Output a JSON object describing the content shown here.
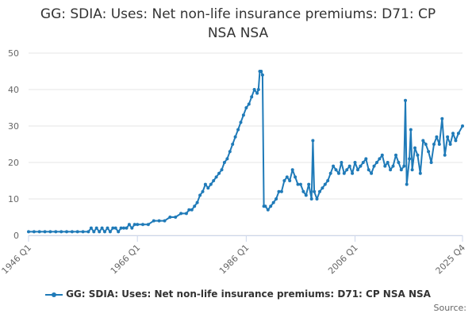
{
  "chart_data": {
    "type": "line",
    "title": "GG: SDIA: Uses: Net non-life insurance premiums: D71: CP NSA NSA",
    "xlabel": "",
    "ylabel": "",
    "ylim": [
      0,
      50
    ],
    "yticks": [
      0,
      10,
      20,
      30,
      40,
      50
    ],
    "xlim": [
      1946.0,
      2025.75
    ],
    "xticks": [
      {
        "label": "1946 Q1",
        "value": 1946.0
      },
      {
        "label": "1966 Q1",
        "value": 1966.0
      },
      {
        "label": "1986 Q1",
        "value": 1986.0
      },
      {
        "label": "2006 Q1",
        "value": 2006.0
      },
      {
        "label": "2025 Q4",
        "value": 2025.75
      }
    ],
    "grid": true,
    "legend_position": "bottom",
    "color": "#1f7ab8",
    "series": [
      {
        "name": "GG: SDIA: Uses: Net non-life insurance premiums: D71: CP NSA NSA",
        "points": [
          [
            1946.0,
            1
          ],
          [
            1947.0,
            1
          ],
          [
            1948.0,
            1
          ],
          [
            1949.0,
            1
          ],
          [
            1950.0,
            1
          ],
          [
            1951.0,
            1
          ],
          [
            1952.0,
            1
          ],
          [
            1953.0,
            1
          ],
          [
            1954.0,
            1
          ],
          [
            1955.0,
            1
          ],
          [
            1956.0,
            1
          ],
          [
            1957.0,
            1
          ],
          [
            1957.5,
            2
          ],
          [
            1958.0,
            1
          ],
          [
            1958.5,
            2
          ],
          [
            1959.0,
            1
          ],
          [
            1959.5,
            2
          ],
          [
            1960.0,
            1
          ],
          [
            1960.5,
            2
          ],
          [
            1961.0,
            1
          ],
          [
            1961.5,
            2
          ],
          [
            1962.0,
            2
          ],
          [
            1962.5,
            1
          ],
          [
            1963.0,
            2
          ],
          [
            1963.5,
            2
          ],
          [
            1964.0,
            2
          ],
          [
            1964.5,
            3
          ],
          [
            1965.0,
            2
          ],
          [
            1965.5,
            3
          ],
          [
            1966.0,
            3
          ],
          [
            1967.0,
            3
          ],
          [
            1968.0,
            3
          ],
          [
            1969.0,
            4
          ],
          [
            1970.0,
            4
          ],
          [
            1971.0,
            4
          ],
          [
            1972.0,
            5
          ],
          [
            1973.0,
            5
          ],
          [
            1974.0,
            6
          ],
          [
            1975.0,
            6
          ],
          [
            1975.5,
            7
          ],
          [
            1976.0,
            7
          ],
          [
            1976.5,
            8
          ],
          [
            1977.0,
            9
          ],
          [
            1977.5,
            11
          ],
          [
            1978.0,
            12
          ],
          [
            1978.5,
            14
          ],
          [
            1979.0,
            13
          ],
          [
            1979.5,
            14
          ],
          [
            1980.0,
            15
          ],
          [
            1980.5,
            16
          ],
          [
            1981.0,
            17
          ],
          [
            1981.5,
            18
          ],
          [
            1982.0,
            20
          ],
          [
            1982.5,
            21
          ],
          [
            1983.0,
            23
          ],
          [
            1983.5,
            25
          ],
          [
            1984.0,
            27
          ],
          [
            1984.5,
            29
          ],
          [
            1985.0,
            31
          ],
          [
            1985.5,
            33
          ],
          [
            1986.0,
            35
          ],
          [
            1986.5,
            36
          ],
          [
            1987.0,
            38
          ],
          [
            1987.5,
            40
          ],
          [
            1988.0,
            39
          ],
          [
            1988.25,
            40
          ],
          [
            1988.5,
            45
          ],
          [
            1988.75,
            45
          ],
          [
            1989.0,
            44
          ],
          [
            1989.25,
            8
          ],
          [
            1989.5,
            8
          ],
          [
            1990.0,
            7
          ],
          [
            1990.5,
            8
          ],
          [
            1991.0,
            9
          ],
          [
            1991.5,
            10
          ],
          [
            1992.0,
            12
          ],
          [
            1992.5,
            12
          ],
          [
            1993.0,
            15
          ],
          [
            1993.5,
            16
          ],
          [
            1994.0,
            15
          ],
          [
            1994.5,
            18
          ],
          [
            1995.0,
            16
          ],
          [
            1995.5,
            14
          ],
          [
            1996.0,
            14
          ],
          [
            1996.5,
            12
          ],
          [
            1997.0,
            11
          ],
          [
            1997.5,
            14
          ],
          [
            1998.0,
            10
          ],
          [
            1998.25,
            26
          ],
          [
            1998.5,
            12
          ],
          [
            1999.0,
            10
          ],
          [
            1999.5,
            12
          ],
          [
            2000.0,
            13
          ],
          [
            2000.5,
            14
          ],
          [
            2001.0,
            15
          ],
          [
            2001.5,
            17
          ],
          [
            2002.0,
            19
          ],
          [
            2002.5,
            18
          ],
          [
            2003.0,
            17
          ],
          [
            2003.5,
            20
          ],
          [
            2004.0,
            17
          ],
          [
            2004.5,
            18
          ],
          [
            2005.0,
            19
          ],
          [
            2005.5,
            17
          ],
          [
            2006.0,
            20
          ],
          [
            2006.5,
            18
          ],
          [
            2007.0,
            19
          ],
          [
            2007.5,
            20
          ],
          [
            2008.0,
            21
          ],
          [
            2008.5,
            18
          ],
          [
            2009.0,
            17
          ],
          [
            2009.5,
            19
          ],
          [
            2010.0,
            20
          ],
          [
            2010.5,
            21
          ],
          [
            2011.0,
            22
          ],
          [
            2011.5,
            19
          ],
          [
            2012.0,
            20
          ],
          [
            2012.5,
            18
          ],
          [
            2013.0,
            19
          ],
          [
            2013.5,
            22
          ],
          [
            2014.0,
            20
          ],
          [
            2014.5,
            18
          ],
          [
            2015.0,
            19
          ],
          [
            2015.25,
            37
          ],
          [
            2015.5,
            14
          ],
          [
            2016.0,
            21
          ],
          [
            2016.25,
            29
          ],
          [
            2016.5,
            18
          ],
          [
            2017.0,
            24
          ],
          [
            2017.5,
            22
          ],
          [
            2018.0,
            17
          ],
          [
            2018.5,
            26
          ],
          [
            2019.0,
            25
          ],
          [
            2019.5,
            23
          ],
          [
            2020.0,
            20
          ],
          [
            2020.5,
            25
          ],
          [
            2021.0,
            27
          ],
          [
            2021.5,
            25
          ],
          [
            2022.0,
            32
          ],
          [
            2022.5,
            22
          ],
          [
            2023.0,
            27
          ],
          [
            2023.5,
            25
          ],
          [
            2024.0,
            28
          ],
          [
            2024.5,
            26
          ],
          [
            2025.0,
            28
          ],
          [
            2025.75,
            30
          ]
        ]
      }
    ]
  },
  "legend": {
    "label": "GG: SDIA: Uses: Net non-life insurance premiums: D71: CP NSA NSA"
  },
  "source": {
    "label": "Source:"
  }
}
